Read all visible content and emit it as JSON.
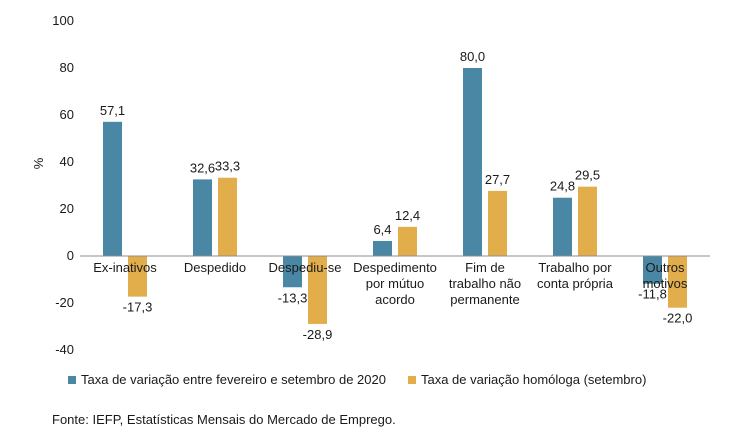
{
  "chart_data": {
    "type": "bar",
    "ylabel": "%",
    "ylim": [
      -40,
      100
    ],
    "yticks": [
      -40,
      -20,
      0,
      20,
      40,
      60,
      80,
      100
    ],
    "categories": [
      [
        "Ex-inativos"
      ],
      [
        "Despedido"
      ],
      [
        "Despediu-se"
      ],
      [
        "Despedimento",
        "por mútuo",
        "acordo"
      ],
      [
        "Fim de",
        "trabalho não",
        "permanente"
      ],
      [
        "Trabalho por",
        "conta própria"
      ],
      [
        "Outros",
        "motivos"
      ]
    ],
    "series": [
      {
        "name": "Taxa de variação entre fevereiro e setembro de 2020",
        "color": "#4a87a4",
        "values": [
          57.1,
          32.6,
          -13.3,
          6.4,
          80.0,
          24.8,
          -11.8
        ],
        "labels": [
          "57,1",
          "32,6",
          "-13,3",
          "6,4",
          "80,0",
          "24,8",
          "-11,8"
        ]
      },
      {
        "name": "Taxa de variação homóloga (setembro)",
        "color": "#e2ad4b",
        "values": [
          -17.3,
          33.3,
          -28.9,
          12.4,
          27.7,
          29.5,
          -22.0
        ],
        "labels": [
          "-17,3",
          "33,3",
          "-28,9",
          "12,4",
          "27,7",
          "29,5",
          "-22,0"
        ]
      }
    ],
    "grid": false,
    "legend_position": "bottom-left"
  },
  "source": "Fonte: IEFP, Estatísticas Mensais do Mercado de Emprego."
}
